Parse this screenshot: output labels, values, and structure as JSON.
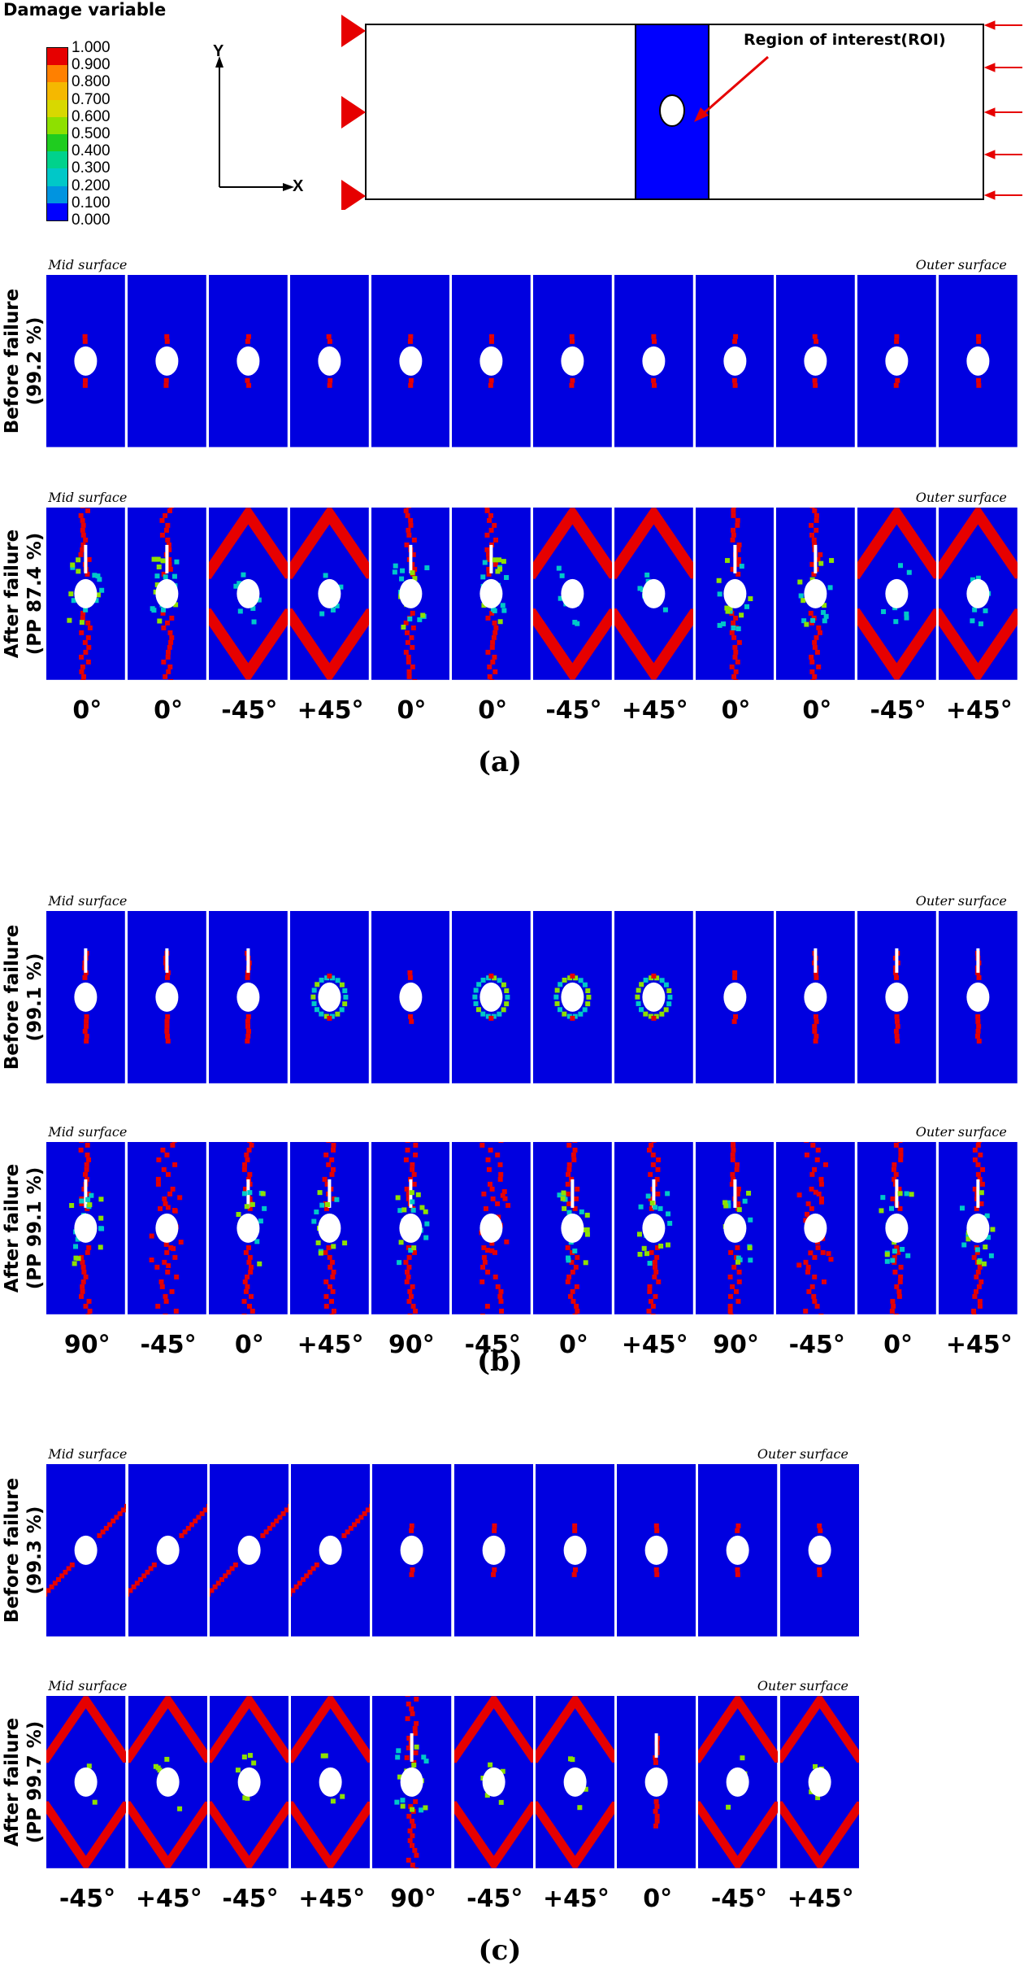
{
  "legend": {
    "title": "Damage variable",
    "ticks": [
      "1.000",
      "0.900",
      "0.800",
      "0.700",
      "0.600",
      "0.500",
      "0.400",
      "0.300",
      "0.200",
      "0.100",
      "0.000"
    ],
    "colors": [
      "#e60000",
      "#ff8000",
      "#f5b800",
      "#d8d800",
      "#8ee000",
      "#1fcc1f",
      "#00d28c",
      "#00c8c8",
      "#0094e0",
      "#0000ff"
    ]
  },
  "axes": {
    "y": "Y",
    "x": "X"
  },
  "schematic": {
    "roi_label": "Region of interest(ROI)",
    "roi_color": "#0000ff",
    "bc_color": "#e60000"
  },
  "colors": {
    "field": "#0000e0",
    "damage": "#e60000",
    "hole": "#ffffff"
  },
  "panels": [
    {
      "caption": "(a)",
      "rows": [
        {
          "label_line1": "Before failure",
          "label_line2": "(99.2 %)",
          "mid": "Mid surface",
          "outer": "Outer surface"
        },
        {
          "label_line1": "After failure",
          "label_line2": "(PP 87.4 %)",
          "mid": "Mid surface",
          "outer": "Outer surface"
        }
      ],
      "angles": [
        "0°",
        "0°",
        "-45°",
        "+45°",
        "0°",
        "0°",
        "-45°",
        "+45°",
        "0°",
        "0°",
        "-45°",
        "+45°"
      ]
    },
    {
      "caption": "(b)",
      "rows": [
        {
          "label_line1": "Before failure",
          "label_line2": "(99.1 %)",
          "mid": "Mid surface",
          "outer": "Outer surface"
        },
        {
          "label_line1": "After failure",
          "label_line2": "(PP 99.1 %)",
          "mid": "Mid surface",
          "outer": "Outer surface"
        }
      ],
      "angles": [
        "90°",
        "-45°",
        "0°",
        "+45°",
        "90°",
        "-45°",
        "0°",
        "+45°",
        "90°",
        "-45°",
        "0°",
        "+45°"
      ]
    },
    {
      "caption": "(c)",
      "rows": [
        {
          "label_line1": "Before failure",
          "label_line2": "(99.3 %)",
          "mid": "Mid surface",
          "outer": "Outer surface"
        },
        {
          "label_line1": "After failure",
          "label_line2": "(PP 99.7 %)",
          "mid": "Mid surface",
          "outer": "Outer surface"
        }
      ],
      "angles": [
        "-45°",
        "+45°",
        "-45°",
        "+45°",
        "90°",
        "-45°",
        "+45°",
        "0°",
        "-45°",
        "+45°"
      ]
    }
  ]
}
